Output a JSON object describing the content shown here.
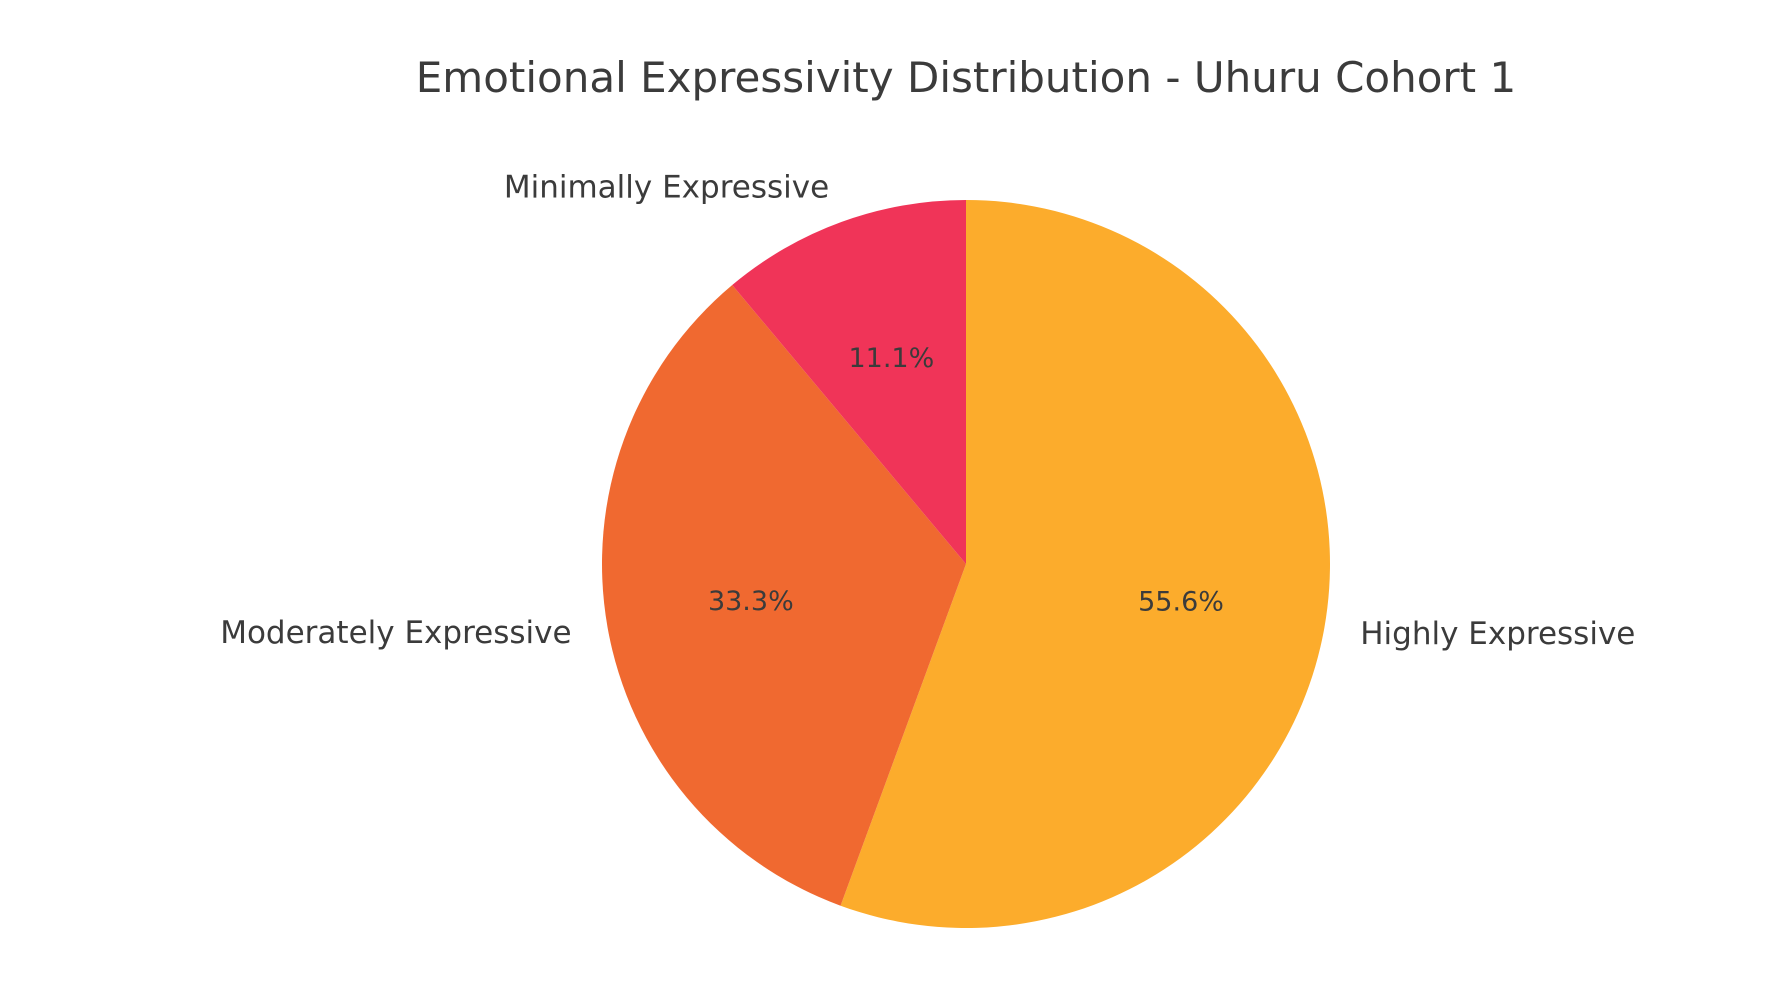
{
  "chart_data": {
    "type": "pie",
    "title": "Emotional Expressivity Distribution - Uhuru Cohort 1",
    "slices": [
      {
        "label": "Highly Expressive",
        "value": 55.6,
        "pct_label": "55.6%",
        "color": "#fcac2c"
      },
      {
        "label": "Moderately Expressive",
        "value": 33.3,
        "pct_label": "33.3%",
        "color": "#f06930"
      },
      {
        "label": "Minimally Expressive",
        "value": 11.1,
        "pct_label": "11.1%",
        "color": "#f03458"
      }
    ],
    "start_angle": "top",
    "direction": "clockwise"
  }
}
